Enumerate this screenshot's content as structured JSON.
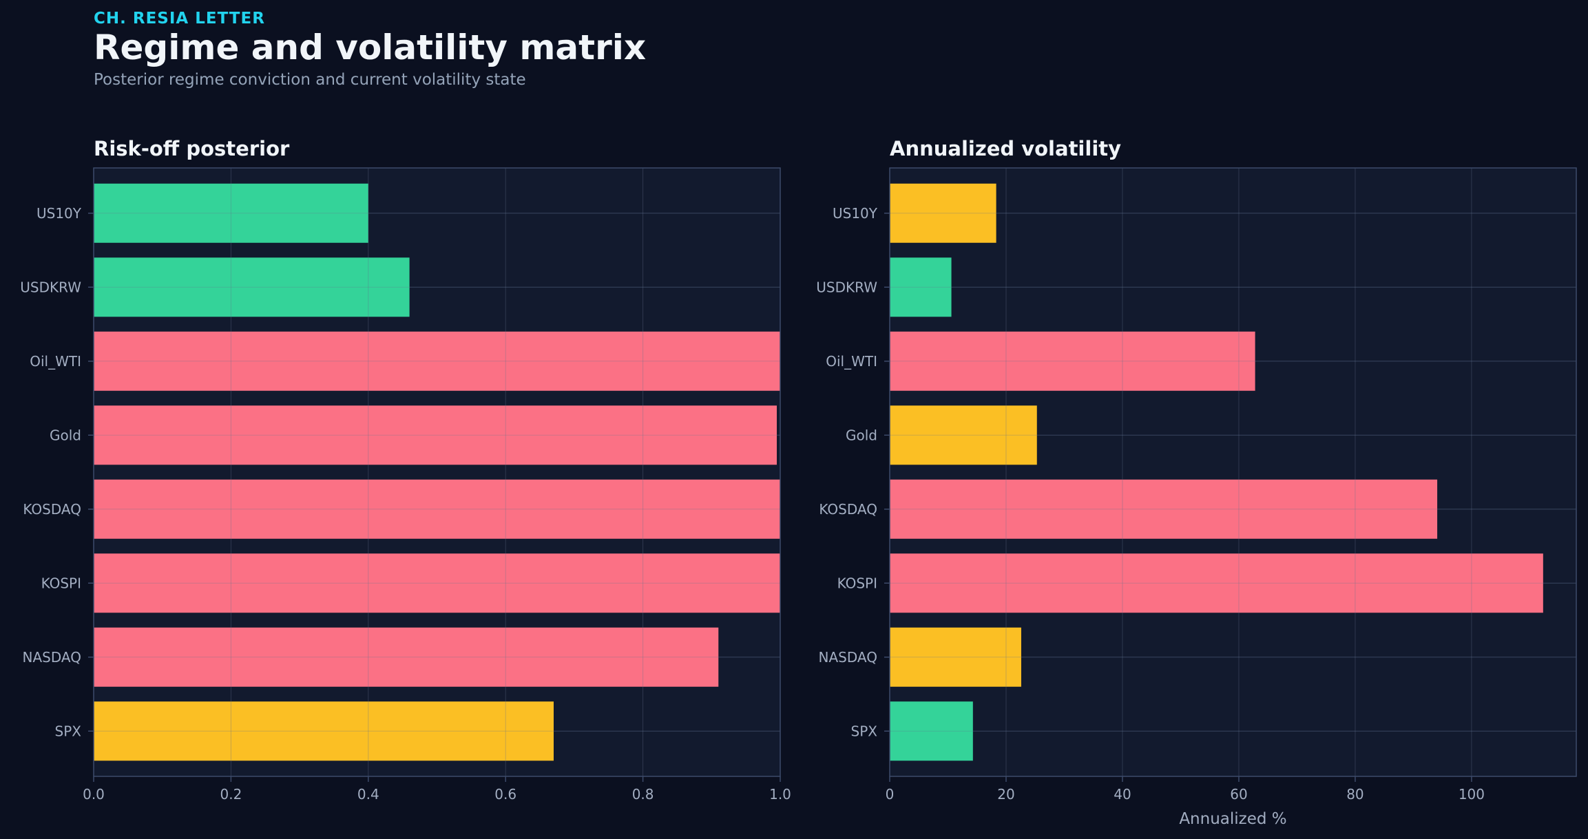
{
  "header": {
    "kicker": "CH. RESIA LETTER",
    "title": "Regime and volatility matrix",
    "subtitle": "Posterior regime conviction and current volatility state"
  },
  "colors": {
    "background": "#0b1020",
    "panel": "#121a2e",
    "grid": "#25304a",
    "frame": "#3c4a6a",
    "tick_text": "#a3aec2",
    "risk_off": "#fb7185",
    "neutral": "#fbbf24",
    "risk_on": "#34d399"
  },
  "chart_data": [
    {
      "type": "bar",
      "orientation": "horizontal",
      "title": "Risk-off posterior",
      "xlabel": "",
      "ylabel": "",
      "categories": [
        "US10Y",
        "USDKRW",
        "Oil_WTI",
        "Gold",
        "KOSDAQ",
        "KOSPI",
        "NASDAQ",
        "SPX"
      ],
      "values": [
        0.4,
        0.46,
        1.0,
        0.995,
        1.0,
        1.0,
        0.91,
        0.67
      ],
      "bar_colors": [
        "#34d399",
        "#34d399",
        "#fb7185",
        "#fb7185",
        "#fb7185",
        "#fb7185",
        "#fb7185",
        "#fbbf24"
      ],
      "xlim": [
        0,
        1.0
      ],
      "xticks": [
        0.0,
        0.2,
        0.4,
        0.6,
        0.8,
        1.0
      ],
      "xtick_labels": [
        "0.0",
        "0.2",
        "0.4",
        "0.6",
        "0.8",
        "1.0"
      ],
      "grid": true
    },
    {
      "type": "bar",
      "orientation": "horizontal",
      "title": "Annualized volatility",
      "xlabel": "Annualized %",
      "ylabel": "",
      "categories": [
        "US10Y",
        "USDKRW",
        "Oil_WTI",
        "Gold",
        "KOSDAQ",
        "KOSPI",
        "NASDAQ",
        "SPX"
      ],
      "values": [
        18.3,
        10.6,
        62.8,
        25.3,
        94.1,
        112.3,
        22.6,
        14.3
      ],
      "bar_colors": [
        "#fbbf24",
        "#34d399",
        "#fb7185",
        "#fbbf24",
        "#fb7185",
        "#fb7185",
        "#fbbf24",
        "#34d399"
      ],
      "xlim": [
        0,
        118
      ],
      "xticks": [
        0,
        20,
        40,
        60,
        80,
        100
      ],
      "xtick_labels": [
        "0",
        "20",
        "40",
        "60",
        "80",
        "100"
      ],
      "grid": true
    }
  ]
}
